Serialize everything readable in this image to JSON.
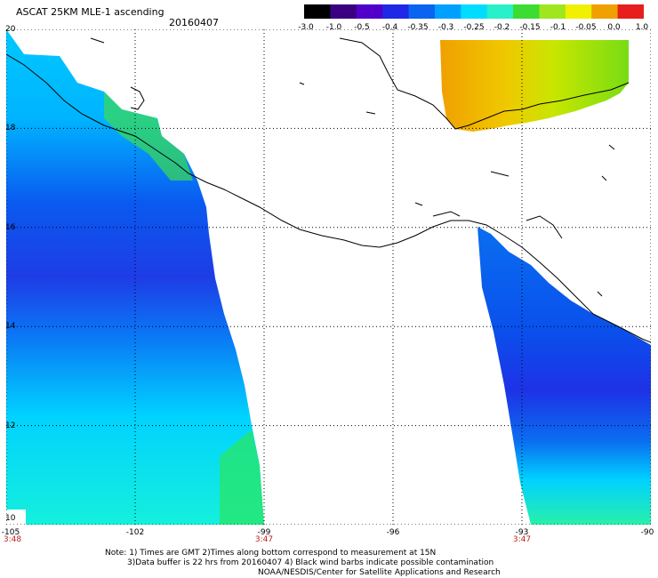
{
  "header": {
    "title": "ASCAT 25KM MLE-1 ascending",
    "date": "20160407"
  },
  "colorbar": {
    "labels": [
      "-3.0",
      "-1.0",
      "-0.5",
      "-0.4",
      "-0.35",
      "-0.3",
      "-0.25",
      "-0.2",
      "-0.15",
      "-0.1",
      "-0.05",
      "0.0",
      "1.0"
    ],
    "colors": [
      "#000000",
      "#3a0080",
      "#5000c8",
      "#1e28e6",
      "#0a64f0",
      "#00a0ff",
      "#00dcff",
      "#28f0c8",
      "#3cdc32",
      "#a0e61e",
      "#f0f000",
      "#f0a000",
      "#e61e1e"
    ]
  },
  "map": {
    "lat_labels": [
      "20",
      "18",
      "16",
      "14",
      "12",
      "10"
    ],
    "lon_labels": [
      "-105",
      "-102",
      "-99",
      "-96",
      "-93",
      "-90"
    ],
    "time_labels": [
      {
        "text": "3:48",
        "lon": -105
      },
      {
        "text": "3:47",
        "lon": -99
      },
      {
        "text": "3:47",
        "lon": -93
      }
    ],
    "lat_range": [
      10,
      20
    ],
    "lon_range": [
      -105,
      -90
    ],
    "grid": true
  },
  "notes": {
    "line1": "Note: 1) Times are GMT 2)Times along bottom correspond to measurement at 15N",
    "line2": "3)Data buffer is 22 hrs from 20160407 4) Black wind barbs indicate possible contamination",
    "line3": "NOAA/NESDIS/Center for Satellite Applications and Research"
  }
}
